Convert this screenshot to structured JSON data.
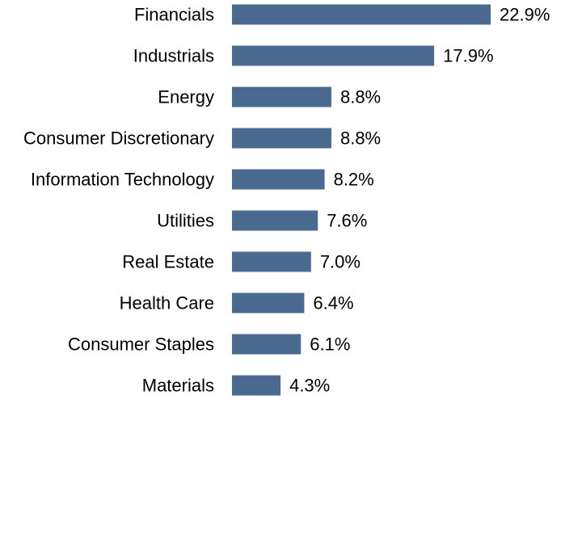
{
  "chart_data": {
    "type": "bar",
    "orientation": "horizontal",
    "title": "",
    "xlabel": "",
    "ylabel": "",
    "categories": [
      "Financials",
      "Industrials",
      "Energy",
      "Consumer Discretionary",
      "Information Technology",
      "Utilities",
      "Real Estate",
      "Health Care",
      "Consumer Staples",
      "Materials"
    ],
    "values": [
      22.9,
      17.9,
      8.8,
      8.8,
      8.2,
      7.6,
      7.0,
      6.4,
      6.1,
      4.3
    ],
    "value_labels": [
      "22.9%",
      "17.9%",
      "8.8%",
      "8.8%",
      "8.2%",
      "7.6%",
      "7.0%",
      "6.4%",
      "6.1%",
      "4.3%"
    ],
    "unit": "%",
    "xlim": [
      0,
      22.9
    ],
    "grid": false,
    "legend": "none",
    "bar_color": "#4a6a8f"
  }
}
